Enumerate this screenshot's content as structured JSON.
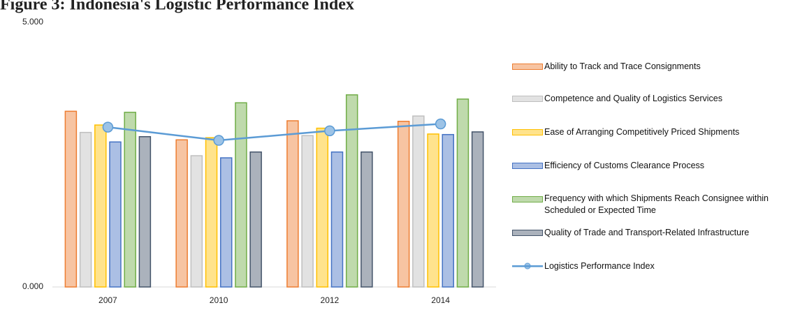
{
  "chart_data": {
    "type": "bar",
    "title": "Figure 3: Indonesia's Logistic Performance Index",
    "categories": [
      "2007",
      "2010",
      "2012",
      "2014"
    ],
    "series": [
      {
        "name": "Ability to Track and Trace Consignments",
        "color": "#ed7d31",
        "values": [
          3.32,
          2.78,
          3.14,
          3.13
        ]
      },
      {
        "name": " Competence and Quality of Logistics Services",
        "color": "#bfbfbf",
        "values": [
          2.92,
          2.48,
          2.86,
          3.23
        ]
      },
      {
        "name": "Ease of Arranging Competitively Priced Shipments",
        "color": "#ffc000",
        "values": [
          3.06,
          2.82,
          3.0,
          2.89
        ]
      },
      {
        "name": "Efficiency of Customs Clearance Process",
        "color": "#4472c4",
        "values": [
          2.74,
          2.44,
          2.55,
          2.88
        ]
      },
      {
        "name": "Frequency with which Shipments Reach Consignee within Scheduled or Expected Time",
        "color": "#70ad47",
        "values": [
          3.3,
          3.48,
          3.63,
          3.55
        ]
      },
      {
        "name": "Quality of Trade and Transport-Related Infrastructure",
        "color": "#44546a",
        "values": [
          2.84,
          2.55,
          2.55,
          2.93
        ]
      },
      {
        "name": "Logistics Performance Index",
        "color": "#5b9bd5",
        "type": "line",
        "values": [
          3.02,
          2.77,
          2.95,
          3.08
        ]
      }
    ],
    "ylim": [
      0,
      5
    ],
    "yticks": [
      {
        "value": 0,
        "label": "0.000"
      },
      {
        "value": 5,
        "label": "5.000"
      }
    ],
    "grid": false,
    "legend": "right"
  }
}
